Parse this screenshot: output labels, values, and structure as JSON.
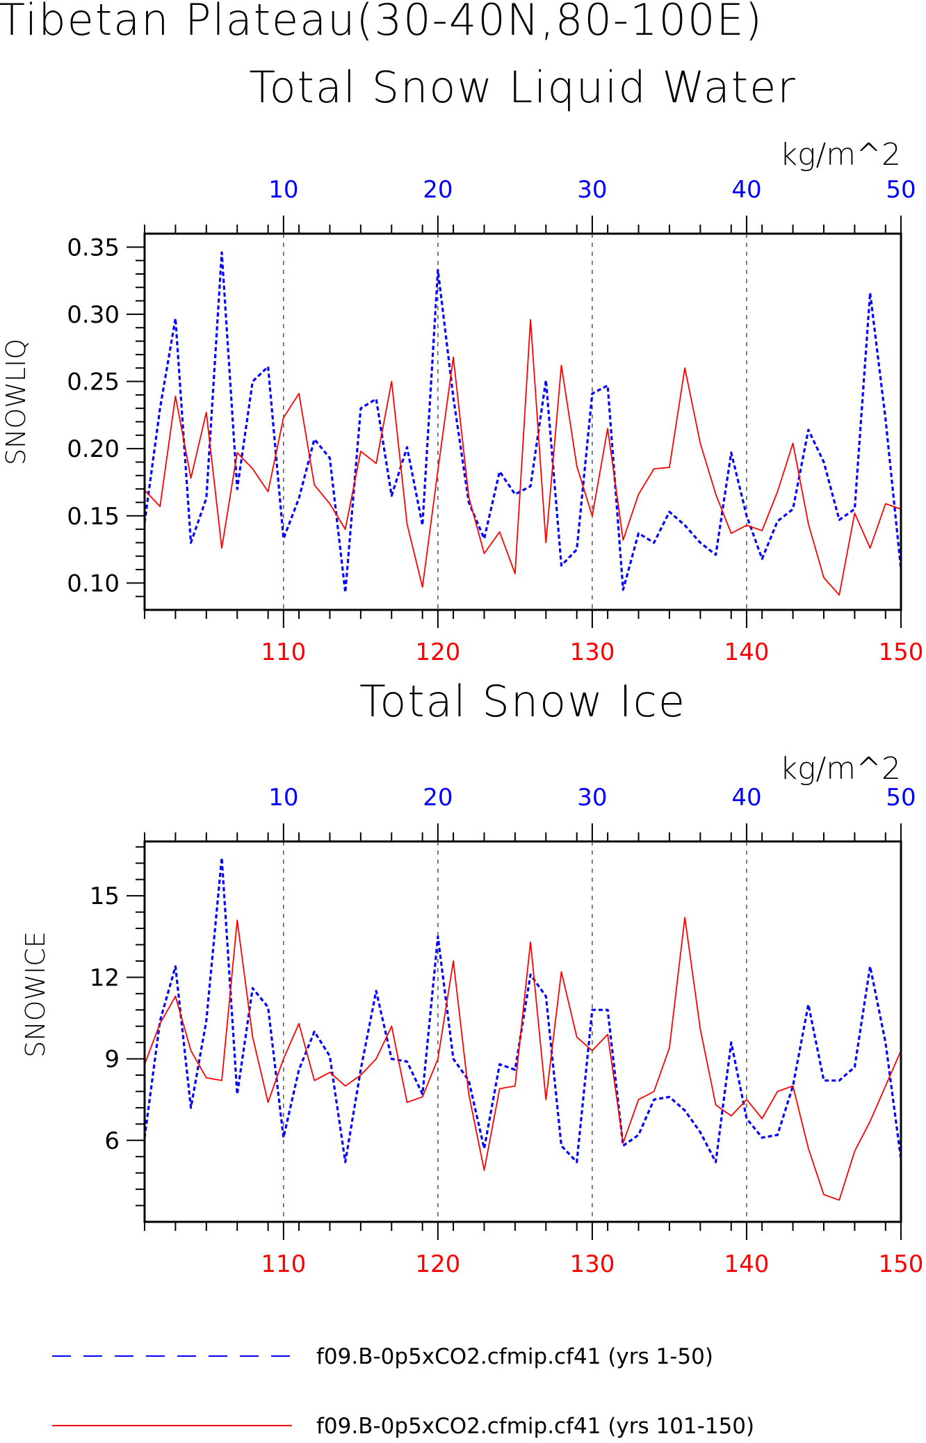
{
  "figure": {
    "title_line1": "Tibetan Plateau(30-40N,80-100E)",
    "colors": {
      "blue": "#0000ff",
      "red": "#ff0000",
      "black": "#000000"
    }
  },
  "chart_data": [
    {
      "type": "line",
      "title": "Total Snow Liquid Water",
      "units": "kg/m^2",
      "ylabel": "SNOWLIQ",
      "ylim": [
        0.08,
        0.36
      ],
      "yticks": [
        0.1,
        0.15,
        0.2,
        0.25,
        0.3,
        0.35
      ],
      "ytick_labels": [
        "0.10",
        "0.15",
        "0.20",
        "0.25",
        "0.30",
        "0.35"
      ],
      "top_axis": {
        "lim": [
          1,
          50
        ],
        "ticks": [
          10,
          20,
          30,
          40,
          50
        ],
        "labels": [
          "10",
          "20",
          "30",
          "40",
          "50"
        ],
        "color": "#0000ff"
      },
      "bottom_axis": {
        "lim": [
          101,
          150
        ],
        "ticks": [
          110,
          120,
          130,
          140,
          150
        ],
        "labels": [
          "110",
          "120",
          "130",
          "140",
          "150"
        ],
        "color": "#ff0000"
      },
      "grid": "vertical dashed at 10-year ticks",
      "series": [
        {
          "name": "f09.B-0p5xCO2.cfmip.cf41 (yrs 1-50)",
          "color": "#0000ff",
          "style": "dashed",
          "axis": "top",
          "values": [
            0.145,
            0.23,
            0.297,
            0.13,
            0.163,
            0.346,
            0.17,
            0.25,
            0.261,
            0.133,
            0.163,
            0.207,
            0.193,
            0.093,
            0.23,
            0.237,
            0.165,
            0.201,
            0.143,
            0.333,
            0.238,
            0.16,
            0.133,
            0.183,
            0.166,
            0.172,
            0.251,
            0.113,
            0.125,
            0.241,
            0.247,
            0.095,
            0.137,
            0.13,
            0.153,
            0.143,
            0.13,
            0.121,
            0.197,
            0.15,
            0.118,
            0.146,
            0.155,
            0.214,
            0.19,
            0.147,
            0.155,
            0.316,
            0.222,
            0.11
          ]
        },
        {
          "name": "f09.B-0p5xCO2.cfmip.cf41 (yrs 101-150)",
          "color": "#ff0000",
          "style": "solid",
          "axis": "bottom",
          "values": [
            0.169,
            0.157,
            0.239,
            0.178,
            0.227,
            0.126,
            0.197,
            0.185,
            0.168,
            0.223,
            0.241,
            0.173,
            0.159,
            0.14,
            0.198,
            0.189,
            0.25,
            0.144,
            0.097,
            0.184,
            0.268,
            0.164,
            0.122,
            0.138,
            0.107,
            0.296,
            0.13,
            0.262,
            0.187,
            0.15,
            0.215,
            0.132,
            0.166,
            0.185,
            0.186,
            0.26,
            0.204,
            0.166,
            0.137,
            0.143,
            0.139,
            0.168,
            0.204,
            0.144,
            0.104,
            0.091,
            0.152,
            0.126,
            0.159,
            0.155
          ]
        }
      ]
    },
    {
      "type": "line",
      "title": "Total Snow Ice",
      "units": "kg/m^2",
      "ylabel": "SNOWICE",
      "ylim": [
        3.0,
        17.0
      ],
      "yticks": [
        6,
        9,
        12,
        15
      ],
      "ytick_labels": [
        "6",
        "9",
        "12",
        "15"
      ],
      "top_axis": {
        "lim": [
          1,
          50
        ],
        "ticks": [
          10,
          20,
          30,
          40,
          50
        ],
        "labels": [
          "10",
          "20",
          "30",
          "40",
          "50"
        ],
        "color": "#0000ff"
      },
      "bottom_axis": {
        "lim": [
          101,
          150
        ],
        "ticks": [
          110,
          120,
          130,
          140,
          150
        ],
        "labels": [
          "110",
          "120",
          "130",
          "140",
          "150"
        ],
        "color": "#ff0000"
      },
      "grid": "vertical dashed at 10-year ticks",
      "series": [
        {
          "name": "f09.B-0p5xCO2.cfmip.cf41 (yrs 1-50)",
          "color": "#0000ff",
          "style": "dashed",
          "axis": "top",
          "values": [
            6.1,
            10.4,
            12.4,
            7.2,
            10.4,
            16.4,
            7.7,
            11.6,
            10.9,
            6.1,
            8.6,
            10.0,
            9.1,
            5.2,
            8.6,
            11.5,
            9.0,
            8.9,
            7.7,
            13.5,
            9.0,
            8.2,
            5.7,
            8.8,
            8.6,
            12.1,
            11.3,
            5.8,
            5.2,
            10.8,
            10.8,
            5.8,
            6.2,
            7.5,
            7.6,
            7.1,
            6.3,
            5.2,
            9.6,
            6.8,
            6.1,
            6.2,
            8.0,
            11.0,
            8.2,
            8.2,
            8.7,
            12.4,
            9.6,
            5.3
          ]
        },
        {
          "name": "f09.B-0p5xCO2.cfmip.cf41 (yrs 101-150)",
          "color": "#ff0000",
          "style": "solid",
          "axis": "bottom",
          "values": [
            8.8,
            10.3,
            11.3,
            9.3,
            8.3,
            8.2,
            14.1,
            9.8,
            7.4,
            9.0,
            10.3,
            8.2,
            8.5,
            8.0,
            8.4,
            9.0,
            10.2,
            7.4,
            7.6,
            9.0,
            12.6,
            7.7,
            4.9,
            7.9,
            8.0,
            13.3,
            7.5,
            12.2,
            9.8,
            9.3,
            9.9,
            5.9,
            7.5,
            7.8,
            9.4,
            14.2,
            10.1,
            7.3,
            6.9,
            7.5,
            6.8,
            7.8,
            8.0,
            5.7,
            4.0,
            3.8,
            5.6,
            6.7,
            8.0,
            9.3
          ]
        }
      ]
    }
  ],
  "legend": {
    "placement": "bottom",
    "items": [
      {
        "label": "f09.B-0p5xCO2.cfmip.cf41 (yrs 1-50)",
        "color": "#0000ff",
        "style": "dashed"
      },
      {
        "label": "f09.B-0p5xCO2.cfmip.cf41 (yrs 101-150)",
        "color": "#ff0000",
        "style": "solid"
      }
    ]
  }
}
